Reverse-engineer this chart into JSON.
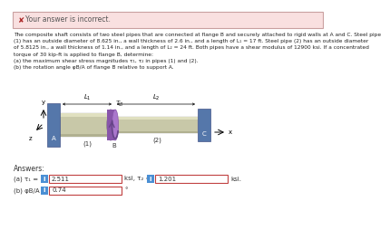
{
  "error_banner_text": "Your answer is incorrect.",
  "error_banner_bg": "#f9e0e0",
  "error_banner_border": "#c9a0a0",
  "error_x_color": "#aa2222",
  "body_text_lines": [
    "The composite shaft consists of two steel pipes that are connected at flange B and securely attached to rigid walls at A and C. Steel pipe",
    "(1) has an outside diameter of 8.625 in., a wall thickness of 2.6 in., and a length of L₁ = 17 ft. Steel pipe (2) has an outside diameter",
    "of 5.8125 in., a wall thickness of 1.14 in., and a length of L₂ = 24 ft. Both pipes have a shear modulus of 12900 ksi. If a concentrated",
    "torque of 30 kip-ft is applied to flange B, determine:",
    "(a) the maximum shear stress magnitudes τ₁, τ₂ in pipes (1) and (2).",
    "(b) the rotation angle φB/A of flange B relative to support A."
  ],
  "answers_label": "Answers:",
  "row_a_label": "(a) τ₁ =",
  "row_a_value1": "2.511",
  "row_a_mid": "ksi, τ₂ =",
  "row_a_value2": "1.201",
  "row_a_unit": "ksi.",
  "row_b_label": "(b) φB/A =",
  "row_b_value": "0.74",
  "row_b_unit": "°",
  "input_bg": "#ffffff",
  "input_border": "#c04040",
  "info_btn_bg": "#4a8fd4",
  "info_btn_text": "i",
  "info_btn_color": "#ffffff",
  "bg_color": "#ffffff",
  "wall_color": "#5577aa",
  "wall_edge": "#445588",
  "pipe_color": "#c8c8a8",
  "pipe_edge": "#aaaaaa",
  "pipe_highlight": "#e0e0c0",
  "flange_color": "#8855aa",
  "flange_front": "#aa77cc",
  "torque_color": "#664488",
  "axis_color": "#000000"
}
